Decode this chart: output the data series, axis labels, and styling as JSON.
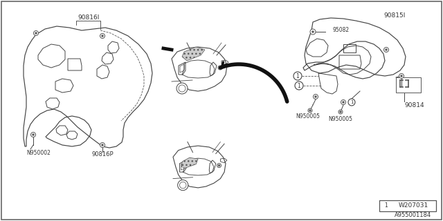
{
  "background_color": "#ffffff",
  "line_color": "#444444",
  "text_color": "#333333",
  "labels": {
    "top_left_part": "90816I",
    "bottom_left_part": "90816P",
    "screw_left": "N950002",
    "top_right_part": "90815I",
    "small_screw_right": "95082",
    "bottom_right_part": "90814",
    "screw_right1": "N950005",
    "screw_right2": "N950005",
    "diagram_code": "W207031",
    "part_code": "A955001184"
  },
  "figsize": [
    6.4,
    3.2
  ],
  "dpi": 100
}
